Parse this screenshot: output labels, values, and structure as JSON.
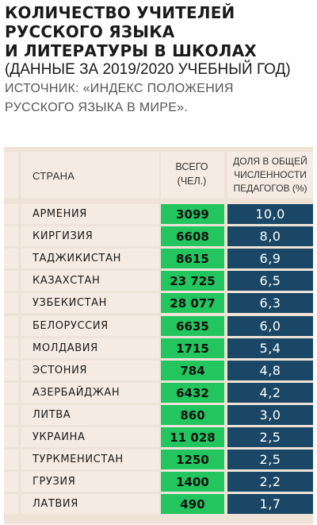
{
  "header": {
    "title_lines": [
      "КОЛИЧЕСТВО УЧИТЕЛЕЙ",
      "РУССКОГО ЯЗЫКА",
      "И ЛИТЕРАТУРЫ В ШКОЛАХ"
    ],
    "subtitle": "(ДАННЫЕ ЗА 2019/2020 УЧЕБНЫЙ ГОД)",
    "source_lines": [
      "ИСТОЧНИК: «ИНДЕКС ПОЛОЖЕНИЯ",
      "РУССКОГО ЯЗЫКА В МИРЕ»."
    ]
  },
  "colors": {
    "total_cell": "#22c55e",
    "share_cell": "#1b4766",
    "table_bg": "#efe3d8"
  },
  "chart_data": {
    "type": "table",
    "columns": {
      "country": "СТРАНА",
      "total": [
        "ВСЕГО",
        "(ЧЕЛ.)"
      ],
      "share": [
        "ДОЛЯ В ОБЩЕЙ",
        "ЧИСЛЕННОСТИ",
        "ПЕДАГОГОВ (%)"
      ]
    },
    "rows": [
      {
        "country": "АРМЕНИЯ",
        "total": "3099",
        "share": "10,0"
      },
      {
        "country": "КИРГИЗИЯ",
        "total": "6608",
        "share": "8,0"
      },
      {
        "country": "ТАДЖИКИСТАН",
        "total": "8615",
        "share": "6,9"
      },
      {
        "country": "КАЗАХСТАН",
        "total": "23 725",
        "share": "6,5"
      },
      {
        "country": "УЗБЕКИСТАН",
        "total": "28 077",
        "share": "6,3"
      },
      {
        "country": "БЕЛОРУССИЯ",
        "total": "6635",
        "share": "6,0"
      },
      {
        "country": "МОЛДАВИЯ",
        "total": "1715",
        "share": "5,4"
      },
      {
        "country": "ЭСТОНИЯ",
        "total": "784",
        "share": "4,8"
      },
      {
        "country": "АЗЕРБАЙДЖАН",
        "total": "6432",
        "share": "4,2"
      },
      {
        "country": "ЛИТВА",
        "total": "860",
        "share": "3,0"
      },
      {
        "country": "УКРАИНА",
        "total": "11 028",
        "share": "2,5"
      },
      {
        "country": "ТУРКМЕНИСТАН",
        "total": "1250",
        "share": "2,5"
      },
      {
        "country": "ГРУЗИЯ",
        "total": "1400",
        "share": "2,2"
      },
      {
        "country": "ЛАТВИЯ",
        "total": "490",
        "share": "1,7"
      }
    ]
  }
}
